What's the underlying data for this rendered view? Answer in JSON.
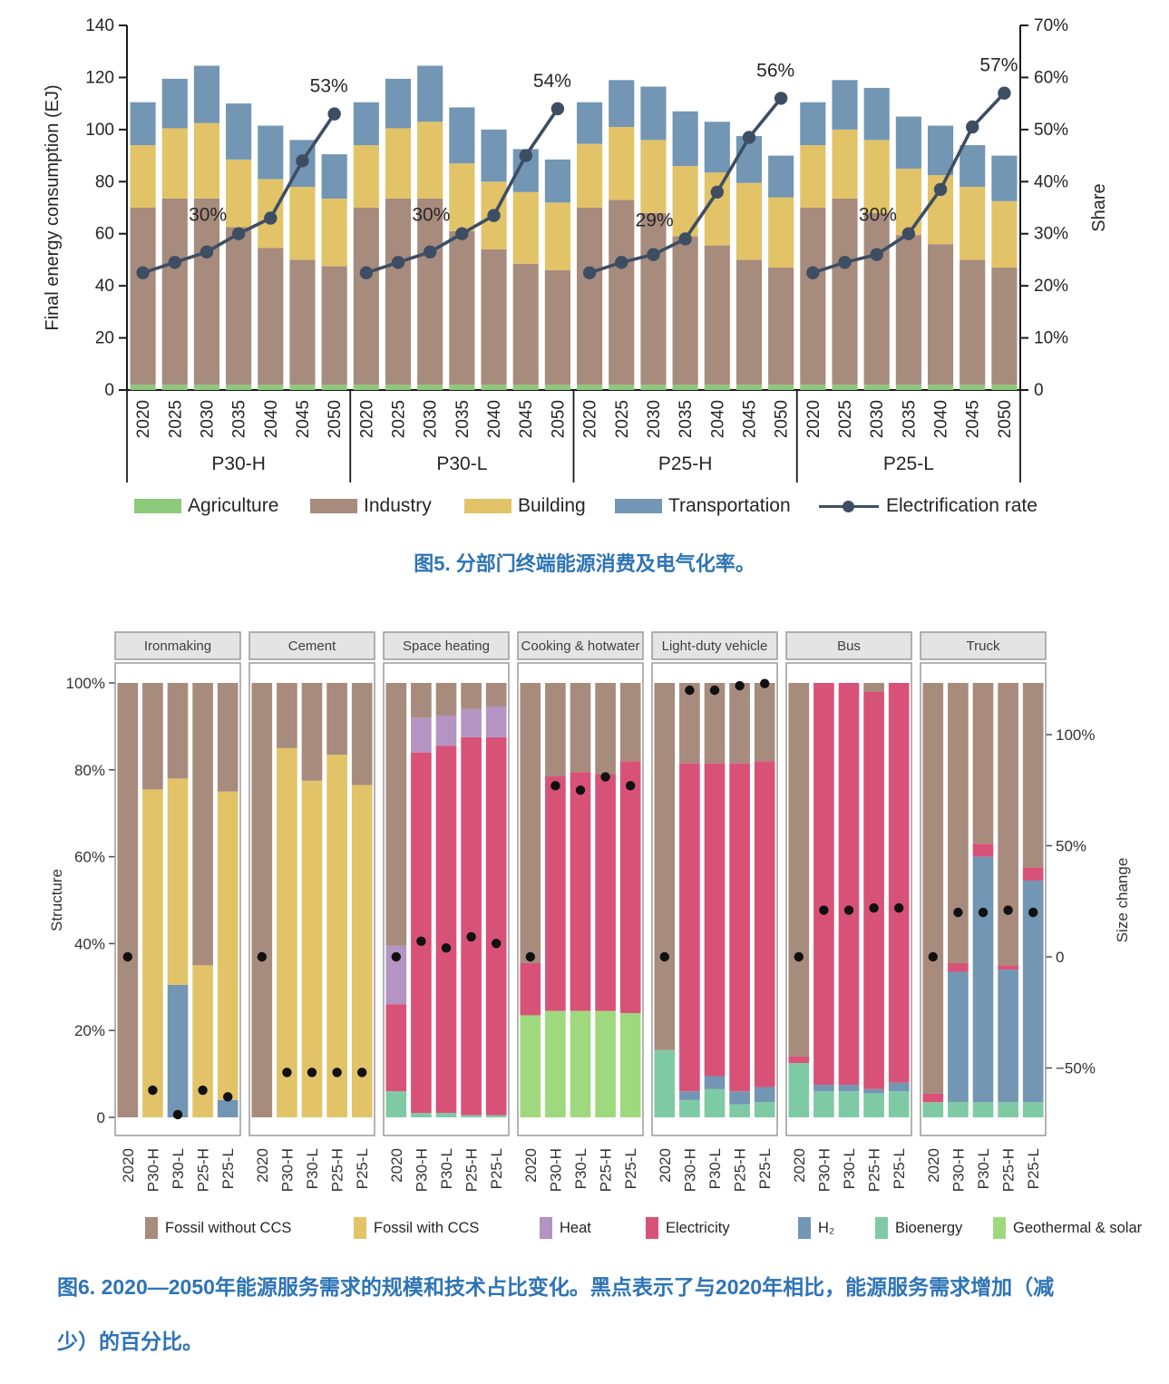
{
  "figure5": {
    "caption": "图5. 分部门终端能源消费及电气化率。",
    "y_axis": {
      "title": "Final energy consumption (EJ)",
      "tick_values": [
        0,
        20,
        40,
        60,
        80,
        100,
        120,
        140
      ],
      "tick_labels": [
        "0",
        "20",
        "40",
        "60",
        "80",
        "100",
        "120",
        "140"
      ],
      "max": 140
    },
    "y2_axis": {
      "title": "Share",
      "tick_values": [
        0,
        10,
        20,
        30,
        40,
        50,
        60,
        70
      ],
      "tick_labels": [
        "0",
        "10%",
        "20%",
        "30%",
        "40%",
        "50%",
        "60%",
        "70%"
      ],
      "max": 70
    },
    "legend": [
      {
        "key": "agriculture",
        "label": "Agriculture",
        "color": "#8cc97b",
        "type": "box"
      },
      {
        "key": "industry",
        "label": "Industry",
        "color": "#a78b7d",
        "type": "box"
      },
      {
        "key": "building",
        "label": "Building",
        "color": "#e2c368",
        "type": "box"
      },
      {
        "key": "transportation",
        "label": "Transportation",
        "color": "#7296b4",
        "type": "box"
      },
      {
        "key": "electrification",
        "label": "Electrification rate",
        "color": "#3d4e63",
        "type": "line"
      }
    ],
    "chart_data": {
      "type": "stacked-bar+line",
      "ylabel": "Final energy consumption (EJ)",
      "y2label": "Share",
      "ylim": [
        0,
        140
      ],
      "y2lim_pct": [
        0,
        70
      ],
      "years": [
        "2020",
        "2025",
        "2030",
        "2035",
        "2040",
        "2045",
        "2050"
      ],
      "stack_order": [
        "agriculture",
        "industry",
        "building",
        "transportation"
      ],
      "colors": {
        "agriculture": "#8cc97b",
        "industry": "#a78b7d",
        "building": "#e2c368",
        "transportation": "#7296b4",
        "electrification": "#3d4e63"
      },
      "panels": [
        {
          "name": "P30-H",
          "agriculture": [
            2,
            2,
            2,
            2,
            2,
            2,
            2
          ],
          "industry": [
            68,
            71.5,
            71.5,
            60.5,
            52.5,
            48,
            45.5
          ],
          "building": [
            24,
            27,
            29,
            26,
            26.5,
            28,
            26
          ],
          "transportation": [
            16.5,
            19,
            22,
            21.5,
            20.5,
            18,
            17
          ],
          "electrification_rate_pct": [
            22.5,
            24.5,
            26.5,
            30,
            33,
            44,
            53
          ],
          "annotations": [
            {
              "year_index": 3,
              "text": "30%"
            },
            {
              "year_index": 6,
              "text": "53%"
            }
          ]
        },
        {
          "name": "P30-L",
          "agriculture": [
            2,
            2,
            2,
            2,
            2,
            2,
            2
          ],
          "industry": [
            68,
            71.5,
            71.5,
            59,
            52,
            46.5,
            44
          ],
          "building": [
            24,
            27,
            29.5,
            26,
            26,
            27.5,
            26
          ],
          "transportation": [
            16.5,
            19,
            21.5,
            21.5,
            20,
            16.5,
            16.5
          ],
          "electrification_rate_pct": [
            22.5,
            24.5,
            26.5,
            30,
            33.5,
            45,
            54
          ],
          "annotations": [
            {
              "year_index": 3,
              "text": "30%"
            },
            {
              "year_index": 6,
              "text": "54%"
            }
          ]
        },
        {
          "name": "P25-H",
          "agriculture": [
            2,
            2,
            2,
            2,
            2,
            2,
            2
          ],
          "industry": [
            68,
            71,
            66,
            57,
            53.5,
            48,
            45
          ],
          "building": [
            24.5,
            28,
            28,
            27,
            28,
            29.5,
            27
          ],
          "transportation": [
            16,
            18,
            20.5,
            21,
            19.5,
            18,
            16
          ],
          "electrification_rate_pct": [
            22.5,
            24.5,
            26,
            29,
            38,
            48.5,
            56
          ],
          "annotations": [
            {
              "year_index": 3,
              "text": "29%"
            },
            {
              "year_index": 6,
              "text": "56%"
            }
          ]
        },
        {
          "name": "P25-L",
          "agriculture": [
            2,
            2,
            2,
            2,
            2,
            2,
            2
          ],
          "industry": [
            68,
            71.5,
            66,
            57.5,
            54,
            48,
            45
          ],
          "building": [
            24,
            26.5,
            28,
            25.5,
            26.5,
            28,
            25.5
          ],
          "transportation": [
            16.5,
            19,
            20,
            20,
            19,
            16,
            17.5
          ],
          "electrification_rate_pct": [
            22.5,
            24.5,
            26,
            30,
            38.5,
            50.5,
            57
          ],
          "annotations": [
            {
              "year_index": 3,
              "text": "30%"
            },
            {
              "year_index": 6,
              "text": "57%"
            }
          ]
        }
      ]
    }
  },
  "figure6": {
    "caption_lines": [
      "图6. 2020—2050年能源服务需求的规模和技术占比变化。黑点表示了与2020年相比，能源服务需求增加（减",
      "少）的百分比。"
    ],
    "y_axis": {
      "title": "Structure",
      "tick_values": [
        0,
        20,
        40,
        60,
        80,
        100
      ],
      "tick_labels": [
        "0",
        "20%",
        "40%",
        "60%",
        "80%",
        "100%"
      ]
    },
    "y2_axis": {
      "title": "Size change",
      "tick_values": [
        -50,
        0,
        50,
        100
      ],
      "tick_labels": [
        "−50%",
        "0",
        "50%",
        "100%"
      ]
    },
    "legend": [
      {
        "key": "fossil_without_ccs",
        "label": "Fossil without CCS",
        "color": "#a78b7d"
      },
      {
        "key": "fossil_with_ccs",
        "label": "Fossil with CCS",
        "color": "#e2c368"
      },
      {
        "key": "heat",
        "label": "Heat",
        "color": "#b394c2"
      },
      {
        "key": "electricity",
        "label": "Electricity",
        "color": "#d85278"
      },
      {
        "key": "h2",
        "label": "H₂",
        "color": "#7296b4"
      },
      {
        "key": "bioenergy",
        "label": "Bioenergy",
        "color": "#7ecaa5"
      },
      {
        "key": "geothermal_solar",
        "label": "Geothermal & solar",
        "color": "#9fd97e"
      }
    ],
    "chart_data": {
      "type": "stacked-bar-percent+dot",
      "ylabel": "Structure",
      "y2label": "Size change",
      "categories": [
        "2020",
        "P30-H",
        "P30-L",
        "P25-H",
        "P25-L"
      ],
      "stack_order": [
        "geothermal_solar",
        "bioenergy",
        "h2",
        "electricity",
        "heat",
        "fossil_with_ccs",
        "fossil_without_ccs"
      ],
      "colors": {
        "fossil_without_ccs": "#a78b7d",
        "fossil_with_ccs": "#e2c368",
        "heat": "#b394c2",
        "electricity": "#d85278",
        "h2": "#7296b4",
        "bioenergy": "#7ecaa5",
        "geothermal_solar": "#9fd97e",
        "dot": "#111111"
      },
      "panels": [
        {
          "name": "Ironmaking",
          "bars": [
            {
              "category": "2020",
              "segments": {
                "fossil_without_ccs": 100
              },
              "size_change_pct": 0
            },
            {
              "category": "P30-H",
              "segments": {
                "fossil_with_ccs": 75.5,
                "fossil_without_ccs": 24.5
              },
              "size_change_pct": -60
            },
            {
              "category": "P30-L",
              "segments": {
                "h2": 30.5,
                "fossil_with_ccs": 47.5,
                "fossil_without_ccs": 22
              },
              "size_change_pct": -71
            },
            {
              "category": "P25-H",
              "segments": {
                "fossil_with_ccs": 35,
                "fossil_without_ccs": 65
              },
              "size_change_pct": -60
            },
            {
              "category": "P25-L",
              "segments": {
                "h2": 4,
                "fossil_with_ccs": 71,
                "fossil_without_ccs": 25
              },
              "size_change_pct": -63
            }
          ]
        },
        {
          "name": "Cement",
          "bars": [
            {
              "category": "2020",
              "segments": {
                "fossil_without_ccs": 100
              },
              "size_change_pct": 0
            },
            {
              "category": "P30-H",
              "segments": {
                "fossil_with_ccs": 85,
                "fossil_without_ccs": 15
              },
              "size_change_pct": -52
            },
            {
              "category": "P30-L",
              "segments": {
                "fossil_with_ccs": 77.5,
                "fossil_without_ccs": 22.5
              },
              "size_change_pct": -52
            },
            {
              "category": "P25-H",
              "segments": {
                "fossil_with_ccs": 83.5,
                "fossil_without_ccs": 16.5
              },
              "size_change_pct": -52
            },
            {
              "category": "P25-L",
              "segments": {
                "fossil_with_ccs": 76.5,
                "fossil_without_ccs": 23.5
              },
              "size_change_pct": -52
            }
          ]
        },
        {
          "name": "Space heating",
          "bars": [
            {
              "category": "2020",
              "segments": {
                "bioenergy": 6,
                "electricity": 20,
                "heat": 13.5,
                "fossil_without_ccs": 60.5
              },
              "size_change_pct": 0
            },
            {
              "category": "P30-H",
              "segments": {
                "bioenergy": 1,
                "electricity": 83,
                "heat": 8,
                "fossil_without_ccs": 8
              },
              "size_change_pct": 7
            },
            {
              "category": "P30-L",
              "segments": {
                "bioenergy": 1,
                "electricity": 84.5,
                "heat": 7,
                "fossil_without_ccs": 7.5
              },
              "size_change_pct": 4
            },
            {
              "category": "P25-H",
              "segments": {
                "bioenergy": 0.5,
                "electricity": 87,
                "heat": 6.5,
                "fossil_without_ccs": 6
              },
              "size_change_pct": 9
            },
            {
              "category": "P25-L",
              "segments": {
                "bioenergy": 0.5,
                "electricity": 87,
                "heat": 7,
                "fossil_without_ccs": 5.5
              },
              "size_change_pct": 6
            }
          ]
        },
        {
          "name": "Cooking & hotwater",
          "bars": [
            {
              "category": "2020",
              "segments": {
                "geothermal_solar": 23.5,
                "electricity": 12,
                "fossil_without_ccs": 64.5
              },
              "size_change_pct": 0
            },
            {
              "category": "P30-H",
              "segments": {
                "geothermal_solar": 24.5,
                "electricity": 54,
                "fossil_without_ccs": 21.5
              },
              "size_change_pct": 77
            },
            {
              "category": "P30-L",
              "segments": {
                "geothermal_solar": 24.5,
                "electricity": 55,
                "fossil_without_ccs": 20.5
              },
              "size_change_pct": 75
            },
            {
              "category": "P25-H",
              "segments": {
                "geothermal_solar": 24.5,
                "electricity": 54.5,
                "fossil_without_ccs": 21
              },
              "size_change_pct": 81
            },
            {
              "category": "P25-L",
              "segments": {
                "geothermal_solar": 24,
                "electricity": 58,
                "fossil_without_ccs": 18
              },
              "size_change_pct": 77
            }
          ]
        },
        {
          "name": "Light-duty vehicle",
          "bars": [
            {
              "category": "2020",
              "segments": {
                "bioenergy": 15.5,
                "fossil_without_ccs": 84.5
              },
              "size_change_pct": 0
            },
            {
              "category": "P30-H",
              "segments": {
                "bioenergy": 4,
                "h2": 2,
                "electricity": 75.5,
                "fossil_without_ccs": 18.5
              },
              "size_change_pct": 120
            },
            {
              "category": "P30-L",
              "segments": {
                "bioenergy": 6.5,
                "h2": 3,
                "electricity": 72,
                "fossil_without_ccs": 18.5
              },
              "size_change_pct": 120
            },
            {
              "category": "P25-H",
              "segments": {
                "bioenergy": 3,
                "h2": 3,
                "electricity": 75.5,
                "fossil_without_ccs": 18.5
              },
              "size_change_pct": 122
            },
            {
              "category": "P25-L",
              "segments": {
                "bioenergy": 3.5,
                "h2": 3.5,
                "electricity": 75,
                "fossil_without_ccs": 18
              },
              "size_change_pct": 123
            }
          ]
        },
        {
          "name": "Bus",
          "bars": [
            {
              "category": "2020",
              "segments": {
                "bioenergy": 12.5,
                "electricity": 1.5,
                "fossil_without_ccs": 86
              },
              "size_change_pct": 0
            },
            {
              "category": "P30-H",
              "segments": {
                "bioenergy": 6,
                "h2": 1.5,
                "electricity": 92.5
              },
              "size_change_pct": 21
            },
            {
              "category": "P30-L",
              "segments": {
                "bioenergy": 6,
                "h2": 1.5,
                "electricity": 92.5
              },
              "size_change_pct": 21
            },
            {
              "category": "P25-H",
              "segments": {
                "bioenergy": 5.5,
                "h2": 1,
                "electricity": 91.5,
                "fossil_without_ccs": 2
              },
              "size_change_pct": 22
            },
            {
              "category": "P25-L",
              "segments": {
                "bioenergy": 6,
                "h2": 2,
                "electricity": 92
              },
              "size_change_pct": 22
            }
          ]
        },
        {
          "name": "Truck",
          "bars": [
            {
              "category": "2020",
              "segments": {
                "bioenergy": 3.5,
                "electricity": 2,
                "fossil_without_ccs": 94.5
              },
              "size_change_pct": 0
            },
            {
              "category": "P30-H",
              "segments": {
                "bioenergy": 3.5,
                "h2": 30,
                "electricity": 2,
                "fossil_without_ccs": 64.5
              },
              "size_change_pct": 20
            },
            {
              "category": "P30-L",
              "segments": {
                "bioenergy": 3.5,
                "h2": 56.5,
                "electricity": 3,
                "fossil_without_ccs": 37
              },
              "size_change_pct": 20
            },
            {
              "category": "P25-H",
              "segments": {
                "bioenergy": 3.5,
                "h2": 30.5,
                "electricity": 1,
                "fossil_without_ccs": 65
              },
              "size_change_pct": 21
            },
            {
              "category": "P25-L",
              "segments": {
                "bioenergy": 3.5,
                "h2": 51,
                "electricity": 3,
                "fossil_without_ccs": 42.5
              },
              "size_change_pct": 20
            }
          ]
        }
      ]
    }
  }
}
